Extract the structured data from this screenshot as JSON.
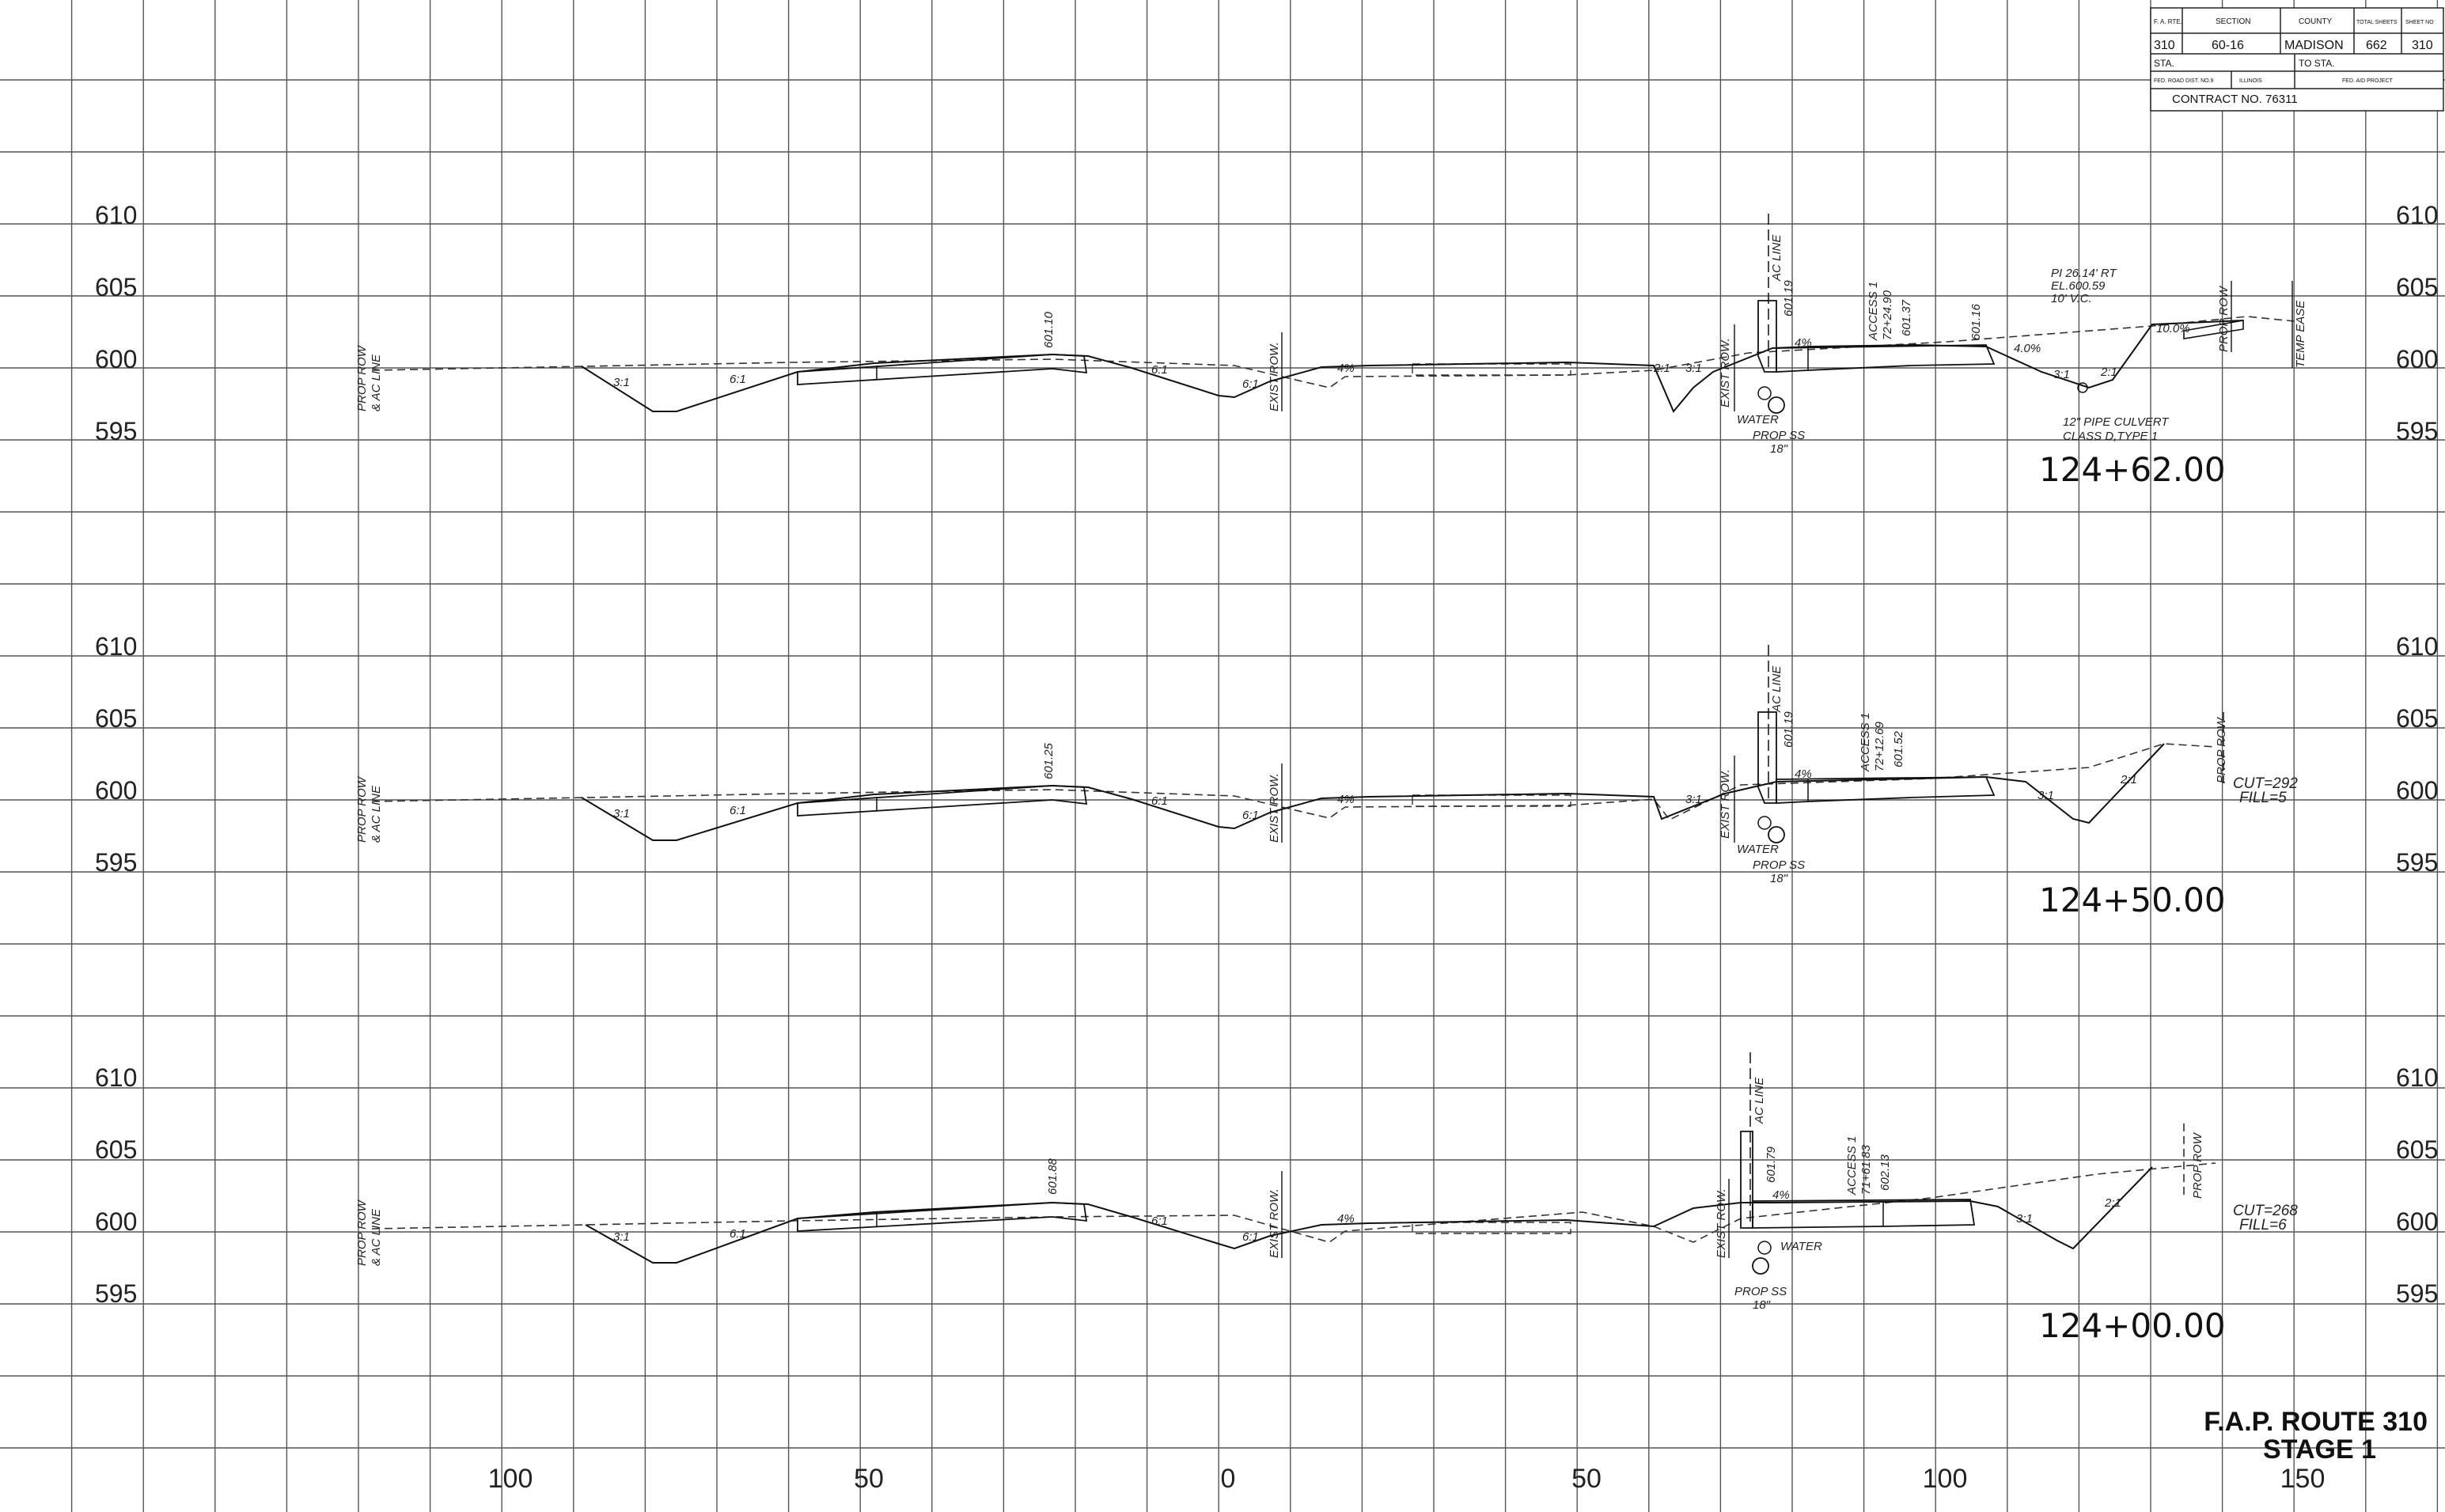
{
  "title_block": {
    "fai_rte_label": "F. A. RTE.",
    "section_label": "SECTION",
    "county_label": "COUNTY",
    "total_sheets_label": "TOTAL SHEETS",
    "sheet_no_label": "SHEET NO",
    "fai_rte": "310",
    "section": "60-16",
    "county": "MADISON",
    "total_sheets": "662",
    "sheet_no": "310",
    "sta_label": "STA.",
    "to_sta_label": "TO STA.",
    "fed_road_label": "FED. ROAD DIST. NO.9",
    "state_label": "ILLINOIS",
    "fed_aid_label": "FED. AID PROJECT",
    "contract": "CONTRACT NO. 76311"
  },
  "route": {
    "line1": "F.A.P. ROUTE 310",
    "line2": "STAGE 1"
  },
  "offset_labels": [
    "100",
    "50",
    "0",
    "50",
    "100",
    "150"
  ],
  "sections": [
    {
      "station": "124+62.00",
      "elevations": [
        "610",
        "605",
        "600",
        "595"
      ],
      "labels": {
        "prop_row_left": "PROP ROW",
        "ac_line_left": "& AC LINE",
        "exist_row_left": "EXIST ROW.",
        "exist_row_right": "EXIST ROW.",
        "ac_line": "AC LINE",
        "elev_left": "601.10",
        "elev_curb": "601.19",
        "access": "ACCESS 1",
        "access_sta": "72+24.90",
        "access_elev": "601.37",
        "elev_right": "601.16",
        "slope_3_1": "3:1",
        "slope_6_1": "6:1",
        "pct_4": "4%",
        "pct_40": "4.0%",
        "pct_10": "10.0%",
        "slope_2_1": "2:1",
        "water": "WATER",
        "prop_ss": "PROP SS",
        "pipe_dia": "18\"",
        "pi_note": "PI 26.14' RT",
        "el_note": "EL.600.59",
        "vc_note": "10' V.C.",
        "culvert1": "12\" PIPE CULVERT",
        "culvert2": "CLASS D,TYPE 1",
        "prop_row_right": "PROP ROW",
        "temp_ease": "TEMP EASE"
      }
    },
    {
      "station": "124+50.00",
      "elevations": [
        "610",
        "605",
        "600",
        "595"
      ],
      "labels": {
        "prop_row_left": "PROP ROW",
        "ac_line_left": "& AC LINE",
        "exist_row_left": "EXIST ROW.",
        "exist_row_right": "EXIST ROW.",
        "ac_line": "AC LINE",
        "elev_left": "601.25",
        "elev_curb": "601.19",
        "access": "ACCESS 1",
        "access_sta": "72+12.69",
        "access_elev": "601.52",
        "slope_3_1": "3:1",
        "slope_6_1": "6:1",
        "pct_4": "4%",
        "slope_2_1": "2:1",
        "water": "WATER",
        "prop_ss": "PROP SS",
        "pipe_dia": "18\"",
        "prop_row_right": "PROP ROW",
        "cut": "CUT=292",
        "fill": "FILL=5"
      }
    },
    {
      "station": "124+00.00",
      "elevations": [
        "610",
        "605",
        "600",
        "595"
      ],
      "labels": {
        "prop_row_left": "PROP ROW",
        "ac_line_left": "& AC LINE",
        "exist_row_left": "EXIST ROW.",
        "exist_row_right": "EXIST ROW.",
        "ac_line": "AC LINE",
        "elev_left": "601.88",
        "elev_curb": "601.79",
        "access": "ACCESS 1",
        "access_sta": "71+61.83",
        "access_elev": "602.13",
        "slope_3_1": "3:1",
        "slope_6_1": "6:1",
        "pct_4": "4%",
        "slope_2_1": "2:1",
        "water": "WATER",
        "prop_ss": "PROP SS",
        "pipe_dia": "18\"",
        "prop_row_right": "PROP ROW",
        "cut": "CUT=268",
        "fill": "FILL=6"
      }
    }
  ]
}
